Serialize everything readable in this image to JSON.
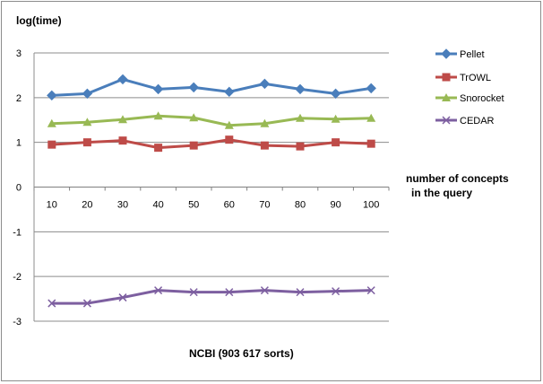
{
  "chart_data": {
    "type": "line",
    "ylabel": "log(time)",
    "xlabel": "NCBI (903 617 sorts)",
    "x_annotation_line1": "number of  concepts",
    "x_annotation_line2": "in the query",
    "categories": [
      "10",
      "20",
      "30",
      "40",
      "50",
      "60",
      "70",
      "80",
      "90",
      "100"
    ],
    "y_ticks": [
      "3",
      "2",
      "1",
      "0",
      "-1",
      "-2",
      "-3"
    ],
    "ylim": [
      -3,
      3
    ],
    "grid": "horizontal",
    "legend_position": "right",
    "series": [
      {
        "name": "Pellet",
        "color": "#4a7ebb",
        "marker": "diamond",
        "values": [
          2.05,
          2.09,
          2.41,
          2.19,
          2.23,
          2.13,
          2.31,
          2.19,
          2.09,
          2.21
        ]
      },
      {
        "name": "TrOWL",
        "color": "#be4b48",
        "marker": "square",
        "values": [
          0.95,
          1.0,
          1.04,
          0.88,
          0.93,
          1.06,
          0.93,
          0.91,
          1.0,
          0.97
        ]
      },
      {
        "name": "Snorocket",
        "color": "#98b954",
        "marker": "triangle",
        "values": [
          1.42,
          1.45,
          1.51,
          1.59,
          1.55,
          1.38,
          1.42,
          1.54,
          1.52,
          1.54
        ]
      },
      {
        "name": "CEDAR",
        "color": "#7d5fa0",
        "marker": "x",
        "values": [
          -2.6,
          -2.6,
          -2.47,
          -2.31,
          -2.35,
          -2.35,
          -2.31,
          -2.35,
          -2.33,
          -2.31
        ]
      }
    ]
  }
}
